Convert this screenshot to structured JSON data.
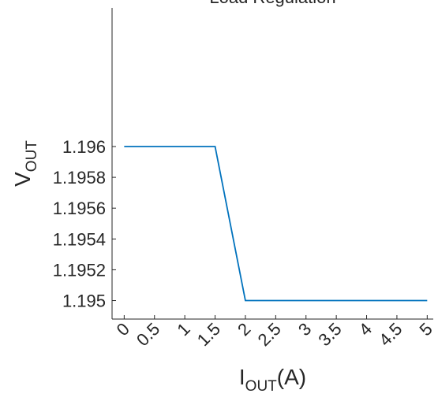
{
  "chart_data": {
    "type": "line",
    "title": "Load Regulation",
    "xlabel": {
      "main": "I",
      "sub": "OUT",
      "suffix": "(A)"
    },
    "ylabel": {
      "main": "V",
      "sub": "OUT"
    },
    "xlim": [
      -0.2,
      5.1
    ],
    "ylim": [
      1.19488,
      1.1969
    ],
    "x_ticks": [
      0,
      0.5,
      1,
      1.5,
      2,
      2.5,
      3,
      3.5,
      4,
      4.5,
      5
    ],
    "x_tick_labels": [
      "0",
      "0.5",
      "1",
      "1.5",
      "2",
      "2.5",
      "3",
      "3.5",
      "4",
      "4.5",
      "5"
    ],
    "y_ticks": [
      1.195,
      1.1952,
      1.1954,
      1.1956,
      1.1958,
      1.196
    ],
    "y_tick_labels": [
      "1.195",
      "1.1952",
      "1.1954",
      "1.1956",
      "1.1958",
      "1.196"
    ],
    "grid": false,
    "series": [
      {
        "color": "#0072BD",
        "x": [
          0,
          0.5,
          1,
          1.5,
          2,
          2.5,
          3,
          3.5,
          4,
          4.5,
          5
        ],
        "y": [
          1.196,
          1.196,
          1.196,
          1.196,
          1.195,
          1.195,
          1.195,
          1.195,
          1.195,
          1.195,
          1.195
        ]
      }
    ]
  }
}
